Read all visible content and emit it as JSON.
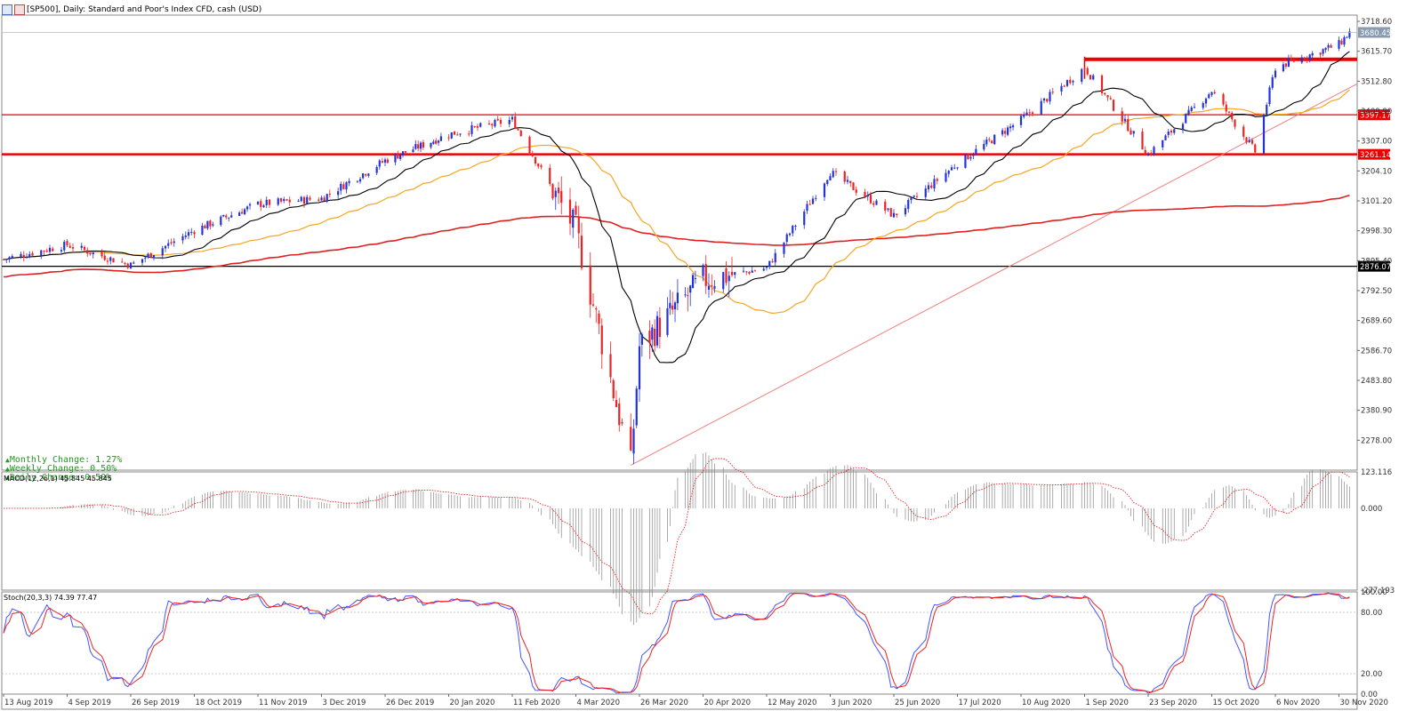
{
  "window": {
    "title": "[SP500], Daily:  Standard and Poor's Index CFD, cash (USD)"
  },
  "changes": [
    {
      "label": "Monthly Change: 1.27%"
    },
    {
      "label": "Weekly Change: 0.50%"
    },
    {
      "label": "Daily Change: 0.50%"
    }
  ],
  "colors": {
    "bull": "#2233dd",
    "bear": "#ee2222",
    "ma_fast": "#000000",
    "ma_mid": "#f5a623",
    "ma_slow": "#e02020",
    "level": "#ee0000",
    "hline": "#000000",
    "stoch_main": "#4455ff",
    "stoch_signal": "#ee2222",
    "macd": "#888888",
    "macd_signal": "#ee2222"
  },
  "chart_data": [
    {
      "type": "candlestick",
      "title": "",
      "panel": "price",
      "ylim": [
        2175,
        3740
      ],
      "y_ticks": [
        "3718.60",
        "3615.70",
        "3512.80",
        "3409.90",
        "3307.00",
        "3204.10",
        "3101.20",
        "2998.30",
        "2895.40",
        "2792.50",
        "2689.60",
        "2586.70",
        "2483.80",
        "2380.90",
        "2278.00"
      ],
      "x_labels": [
        "13 Aug 2019",
        "4 Sep 2019",
        "26 Sep 2019",
        "18 Oct 2019",
        "11 Nov 2019",
        "3 Dec 2019",
        "26 Dec 2019",
        "20 Jan 2020",
        "11 Feb 2020",
        "4 Mar 2020",
        "26 Mar 2020",
        "20 Apr 2020",
        "12 May 2020",
        "3 Jun 2020",
        "25 Jun 2020",
        "17 Jul 2020",
        "10 Aug 2020",
        "1 Sep 2020",
        "23 Sep 2020",
        "15 Oct 2020",
        "6 Nov 2020",
        "30 Nov 2020"
      ],
      "price_keypoints": [
        {
          "date": "13 Aug 2019",
          "close": 2900
        },
        {
          "date": "4 Sep 2019",
          "close": 2950
        },
        {
          "date": "26 Sep 2019",
          "close": 2880
        },
        {
          "date": "18 Oct 2019",
          "close": 3000
        },
        {
          "date": "11 Nov 2019",
          "close": 3090
        },
        {
          "date": "3 Dec 2019",
          "close": 3110
        },
        {
          "date": "26 Dec 2019",
          "close": 3240
        },
        {
          "date": "20 Jan 2020",
          "close": 3330
        },
        {
          "date": "11 Feb 2020",
          "close": 3380
        },
        {
          "date": "4 Mar 2020",
          "close": 3000
        },
        {
          "date": "23 Mar 2020",
          "close": 2190
        },
        {
          "date": "26 Mar 2020",
          "close": 2600
        },
        {
          "date": "20 Apr 2020",
          "close": 2830
        },
        {
          "date": "12 May 2020",
          "close": 2870
        },
        {
          "date": "3 Jun 2020",
          "close": 3200
        },
        {
          "date": "25 Jun 2020",
          "close": 3050
        },
        {
          "date": "17 Jul 2020",
          "close": 3230
        },
        {
          "date": "10 Aug 2020",
          "close": 3380
        },
        {
          "date": "1 Sep 2020",
          "close": 3560
        },
        {
          "date": "23 Sep 2020",
          "close": 3260
        },
        {
          "date": "15 Oct 2020",
          "close": 3480
        },
        {
          "date": "30 Oct 2020",
          "close": 3270
        },
        {
          "date": "6 Nov 2020",
          "close": 3560
        },
        {
          "date": "30 Nov 2020",
          "close": 3640
        },
        {
          "date": "4 Dec 2020",
          "close": 3680
        }
      ],
      "levels": [
        {
          "value": 3397.17,
          "label": "3397.17",
          "style": "red-line"
        },
        {
          "value": 3261.14,
          "label": "3261.14",
          "style": "red-thick"
        },
        {
          "value": 2876.07,
          "label": "2876.07",
          "style": "black-line"
        },
        {
          "value": 3588,
          "label": "",
          "style": "red-heavy-from-sep"
        }
      ],
      "current_price": "3680.45",
      "moving_averages": [
        "ma_fast",
        "ma_mid",
        "ma_slow"
      ],
      "trendline": {
        "from": {
          "date": "23 Mar 2020",
          "value": 2192
        },
        "to": {
          "date": "4 Dec 2020",
          "value": 3490
        }
      },
      "grid": false
    },
    {
      "type": "bar",
      "panel": "macd",
      "title": "MACD(12,26,1) 45.845 45.845",
      "ylim": [
        -277.193,
        123.116
      ],
      "y_ticks": [
        "123.116",
        "0.000",
        "-277.193"
      ]
    },
    {
      "type": "line",
      "panel": "stochastic",
      "title": "Stoch(20,3,3) 74.39 77.47",
      "ylim": [
        0,
        100
      ],
      "y_ticks": [
        "100.00",
        "80.00",
        "20.00",
        "0.00"
      ]
    }
  ]
}
